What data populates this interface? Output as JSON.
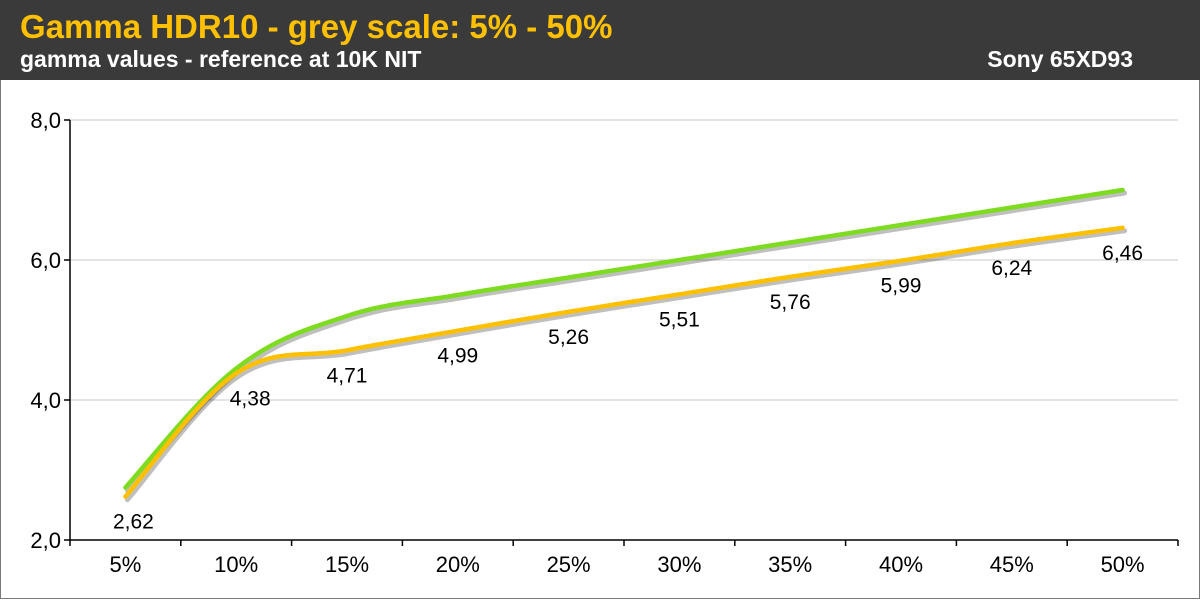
{
  "header": {
    "title": "Gamma HDR10 - grey scale: 5% - 50%",
    "subtitle": "gamma values - reference at 10K NIT",
    "device": "Sony 65XD93"
  },
  "colors": {
    "header_bg": "#3a3a3a",
    "title": "#ffc000",
    "reference_line": "#7ddc1f",
    "measured_line": "#ffc000",
    "grid": "#c8c8c8"
  },
  "chart_data": {
    "type": "line",
    "categories": [
      "5%",
      "10%",
      "15%",
      "20%",
      "25%",
      "30%",
      "35%",
      "40%",
      "45%",
      "50%"
    ],
    "y_tick_labels": [
      "2,0",
      "4,0",
      "6,0",
      "8,0"
    ],
    "y_ticks": [
      2,
      4,
      6,
      8
    ],
    "ylim": [
      2,
      8
    ],
    "grid": true,
    "legend": "none",
    "series": [
      {
        "values": [
          2.75,
          4.45,
          5.2,
          5.5,
          5.75,
          6.0,
          6.25,
          6.5,
          6.75,
          7.0
        ],
        "color": "#7ddc1f"
      },
      {
        "values": [
          2.62,
          4.38,
          4.71,
          4.99,
          5.26,
          5.51,
          5.76,
          5.99,
          6.24,
          6.46
        ],
        "color": "#ffc000",
        "labels": [
          "2,62",
          "4,38",
          "4,71",
          "4,99",
          "5,26",
          "5,51",
          "5,76",
          "5,99",
          "6,24",
          "6,46"
        ]
      }
    ]
  }
}
